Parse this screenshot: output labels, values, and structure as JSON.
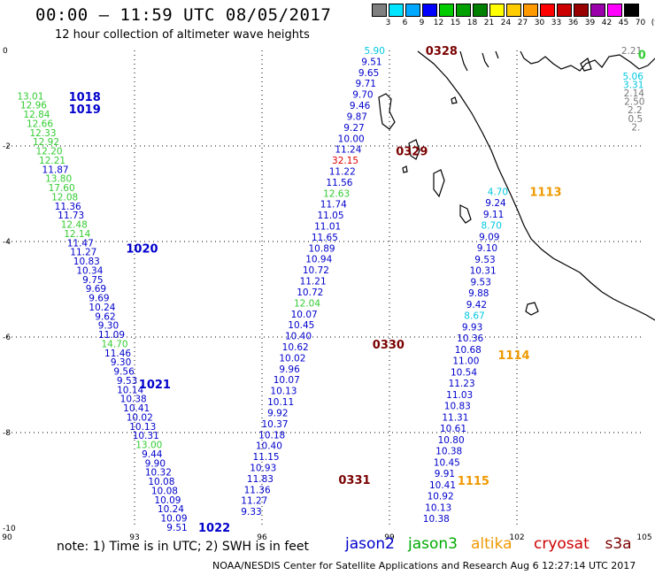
{
  "title": "00:00 — 11:59 UTC 08/05/2017",
  "subtitle": "12 hour collection of altimeter wave heights",
  "legend": [
    {
      "label": "3",
      "color": "#7f7f7f"
    },
    {
      "label": "6",
      "color": "#00e5ff"
    },
    {
      "label": "9",
      "color": "#00a8ff"
    },
    {
      "label": "12",
      "color": "#0000ff"
    },
    {
      "label": "15",
      "color": "#00cc00"
    },
    {
      "label": "18",
      "color": "#00a000"
    },
    {
      "label": "21",
      "color": "#008000"
    },
    {
      "label": "24",
      "color": "#ffff00"
    },
    {
      "label": "27",
      "color": "#ffcc00"
    },
    {
      "label": "30",
      "color": "#ff9900"
    },
    {
      "label": "33",
      "color": "#ff0000"
    },
    {
      "label": "36",
      "color": "#cc0000"
    },
    {
      "label": "39",
      "color": "#990000"
    },
    {
      "label": "42",
      "color": "#9900aa"
    },
    {
      "label": "45",
      "color": "#ff00ff"
    },
    {
      "label": "70",
      "color": "#000000"
    },
    {
      "label": "(ft)",
      "color": ""
    }
  ],
  "axes": {
    "lon_ticks": [
      "90",
      "93",
      "96",
      "99",
      "102",
      "105"
    ],
    "lat_ticks": [
      "0",
      "-2",
      "-4",
      "-6",
      "-8",
      "-10"
    ]
  },
  "colors": {
    "blue": "#0000cc",
    "green": "#33cc33",
    "cyan": "#00c8e0",
    "darkred": "#7a0000",
    "red": "#e00000",
    "orange": "#ee9900",
    "grey": "#777777"
  },
  "tracks": [
    {
      "times": [
        {
          "text": "1018",
          "lon": 91.45,
          "lat": -0.96,
          "c": "blue"
        },
        {
          "text": "1019",
          "lon": 91.45,
          "lat": -1.22,
          "c": "blue"
        },
        {
          "text": "1020",
          "lon": 92.8,
          "lat": -4.14,
          "c": "blue"
        },
        {
          "text": "1021",
          "lon": 93.1,
          "lat": -6.98,
          "c": "blue"
        },
        {
          "text": "1022",
          "lon": 94.5,
          "lat": -9.98,
          "c": "blue"
        }
      ],
      "start_lon": 90.55,
      "start_lat": -0.95,
      "end_lon": 94.0,
      "end_lat": -9.98,
      "values": [
        [
          "13.01",
          "green"
        ],
        [
          "12.96",
          "green"
        ],
        [
          "12.84",
          "green"
        ],
        [
          "12.66",
          "green"
        ],
        [
          "12.33",
          "green"
        ],
        [
          "12.92",
          "green"
        ],
        [
          "12.20",
          "green"
        ],
        [
          "12.21",
          "green"
        ],
        [
          "11.87",
          "blue"
        ],
        [
          "13.80",
          "green"
        ],
        [
          "17.60",
          "green"
        ],
        [
          "12.08",
          "green"
        ],
        [
          "11.36",
          "blue"
        ],
        [
          "11.73",
          "blue"
        ],
        [
          "12.48",
          "green"
        ],
        [
          "12.14",
          "green"
        ],
        [
          "11.47",
          "blue"
        ],
        [
          "11.27",
          "blue"
        ],
        [
          "10.83",
          "blue"
        ],
        [
          "10.34",
          "blue"
        ],
        [
          "9.75",
          "blue"
        ],
        [
          "9.69",
          "blue"
        ],
        [
          "9.69",
          "blue"
        ],
        [
          "10.24",
          "blue"
        ],
        [
          "9.62",
          "blue"
        ],
        [
          "9.30",
          "blue"
        ],
        [
          "11.09",
          "blue"
        ],
        [
          "14.70",
          "green"
        ],
        [
          "11.46",
          "blue"
        ],
        [
          "9.30",
          "blue"
        ],
        [
          "9.56",
          "blue"
        ],
        [
          "9.53",
          "blue"
        ],
        [
          "10.14",
          "blue"
        ],
        [
          "10.38",
          "blue"
        ],
        [
          "10.41",
          "blue"
        ],
        [
          "10.02",
          "blue"
        ],
        [
          "10.13",
          "blue"
        ],
        [
          "10.31",
          "blue"
        ],
        [
          "13.00",
          "green"
        ],
        [
          "9.44",
          "blue"
        ],
        [
          "9.90",
          "blue"
        ],
        [
          "10.32",
          "blue"
        ],
        [
          "10.08",
          "blue"
        ],
        [
          "10.08",
          "blue"
        ],
        [
          "10.09",
          "blue"
        ],
        [
          "10.24",
          "blue"
        ],
        [
          "10.09",
          "blue"
        ],
        [
          "9.51",
          "blue"
        ]
      ]
    },
    {
      "times": [
        {
          "text": "0328",
          "lon": 99.85,
          "lat": 0.0,
          "c": "darkred"
        },
        {
          "text": "0329",
          "lon": 99.15,
          "lat": -2.1,
          "c": "darkred"
        },
        {
          "text": "0330",
          "lon": 98.6,
          "lat": -6.15,
          "c": "darkred"
        },
        {
          "text": "0331",
          "lon": 97.8,
          "lat": -8.98,
          "c": "darkred"
        }
      ],
      "start_lon": 98.65,
      "start_lat": 0.0,
      "end_lon": 95.75,
      "end_lat": -9.65,
      "values": [
        [
          "5.90",
          "cyan"
        ],
        [
          "9.51",
          "blue"
        ],
        [
          "9.65",
          "blue"
        ],
        [
          "9.71",
          "blue"
        ],
        [
          "9.70",
          "blue"
        ],
        [
          "9.46",
          "blue"
        ],
        [
          "9.87",
          "blue"
        ],
        [
          "9.27",
          "blue"
        ],
        [
          "10.00",
          "blue"
        ],
        [
          "11.24",
          "blue"
        ],
        [
          "32.15",
          "red"
        ],
        [
          "11.22",
          "blue"
        ],
        [
          "11.56",
          "blue"
        ],
        [
          "12.63",
          "green"
        ],
        [
          "11.74",
          "blue"
        ],
        [
          "11.05",
          "blue"
        ],
        [
          "11.01",
          "blue"
        ],
        [
          "11.65",
          "blue"
        ],
        [
          "10.89",
          "blue"
        ],
        [
          "10.94",
          "blue"
        ],
        [
          "10.72",
          "blue"
        ],
        [
          "11.21",
          "blue"
        ],
        [
          "10.72",
          "blue"
        ],
        [
          "12.04",
          "green"
        ],
        [
          "10.07",
          "blue"
        ],
        [
          "10.45",
          "blue"
        ],
        [
          "10.40",
          "blue"
        ],
        [
          "10.62",
          "blue"
        ],
        [
          "10.02",
          "blue"
        ],
        [
          "9.96",
          "blue"
        ],
        [
          "10.07",
          "blue"
        ],
        [
          "10.13",
          "blue"
        ],
        [
          "10.11",
          "blue"
        ],
        [
          "9.92",
          "blue"
        ],
        [
          "10.37",
          "blue"
        ],
        [
          "10.18",
          "blue"
        ],
        [
          "10.40",
          "blue"
        ],
        [
          "11.15",
          "blue"
        ],
        [
          "10.93",
          "blue"
        ],
        [
          "11.83",
          "blue"
        ],
        [
          "11.36",
          "blue"
        ],
        [
          "11.27",
          "blue"
        ],
        [
          "9.33",
          "blue"
        ]
      ]
    },
    {
      "times": [
        {
          "text": "1113",
          "lon": 102.3,
          "lat": -2.95,
          "c": "orange"
        },
        {
          "text": "1114",
          "lon": 101.55,
          "lat": -6.37,
          "c": "orange"
        },
        {
          "text": "1115",
          "lon": 100.6,
          "lat": -9.0,
          "c": "orange"
        }
      ],
      "start_lon": 101.55,
      "start_lat": -2.95,
      "end_lon": 100.1,
      "end_lat": -9.8,
      "values": [
        [
          "4.70",
          "cyan"
        ],
        [
          "9.24",
          "blue"
        ],
        [
          "9.11",
          "blue"
        ],
        [
          "8.70",
          "cyan"
        ],
        [
          "9.09",
          "blue"
        ],
        [
          "9.10",
          "blue"
        ],
        [
          "9.53",
          "blue"
        ],
        [
          "10.31",
          "blue"
        ],
        [
          "9.53",
          "blue"
        ],
        [
          "9.88",
          "blue"
        ],
        [
          "9.42",
          "blue"
        ],
        [
          "8.67",
          "cyan"
        ],
        [
          "9.93",
          "blue"
        ],
        [
          "10.36",
          "blue"
        ],
        [
          "10.68",
          "blue"
        ],
        [
          "11.00",
          "blue"
        ],
        [
          "10.54",
          "blue"
        ],
        [
          "11.23",
          "blue"
        ],
        [
          "11.03",
          "blue"
        ],
        [
          "10.83",
          "blue"
        ],
        [
          "11.31",
          "blue"
        ],
        [
          "10.61",
          "blue"
        ],
        [
          "10.80",
          "blue"
        ],
        [
          "10.38",
          "blue"
        ],
        [
          "10.45",
          "blue"
        ],
        [
          "9.91",
          "blue"
        ],
        [
          "10.41",
          "blue"
        ],
        [
          "10.92",
          "blue"
        ],
        [
          "10.13",
          "blue"
        ],
        [
          "10.38",
          "blue"
        ]
      ]
    },
    {
      "times": [
        {
          "text": "0",
          "lon": 104.85,
          "lat": -0.08,
          "c": "green"
        }
      ],
      "start_lon": 104.7,
      "start_lat": 0.0,
      "end_lon": 104.8,
      "end_lat": -1.6,
      "values": [
        [
          "2.21",
          "grey"
        ],
        [
          "",
          "blue"
        ],
        [
          "",
          "blue"
        ],
        [
          "5.06",
          "cyan"
        ],
        [
          "3.31",
          "cyan"
        ],
        [
          "2.14",
          "grey"
        ],
        [
          "2.50",
          "grey"
        ],
        [
          "2.2",
          "grey"
        ],
        [
          "0.5",
          "grey"
        ],
        [
          "2.",
          "grey"
        ]
      ]
    }
  ],
  "note": "note: 1) Time is in UTC; 2) SWH is in feet",
  "satellites": [
    {
      "name": "jason2",
      "color": "#0000cc"
    },
    {
      "name": "jason3",
      "color": "#00aa00"
    },
    {
      "name": "altika",
      "color": "#ee9900"
    },
    {
      "name": "cryosat",
      "color": "#cc0000"
    },
    {
      "name": "s3a",
      "color": "#7a0000"
    }
  ],
  "footer": "NOAA/NESDIS Center for Satellite Applications and Research    Aug  6 12:27:14 UTC 2017"
}
